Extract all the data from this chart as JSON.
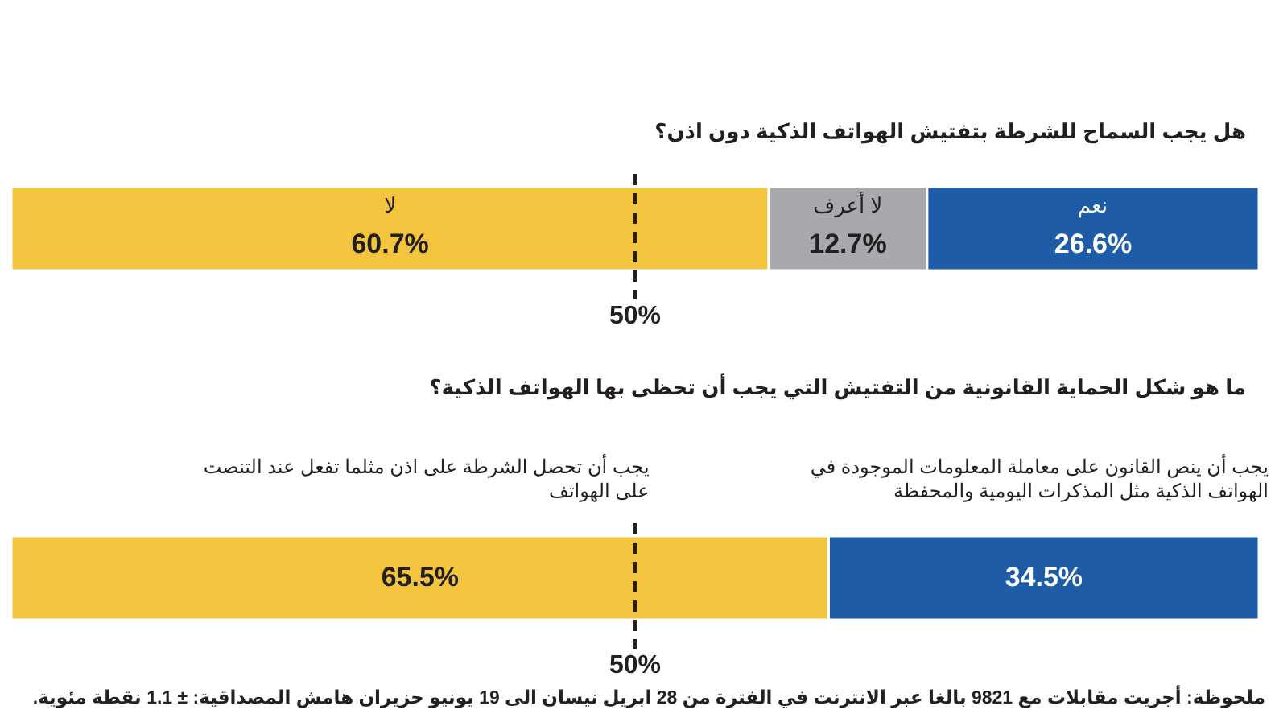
{
  "chart_data": [
    {
      "type": "bar",
      "orientation": "horizontal",
      "stacked": true,
      "title": "هل يجب السماح للشرطة بتفتيش الهواتف الذكية دون اذن؟",
      "categories": [
        null
      ],
      "xlim": [
        100,
        0
      ],
      "tick_labels": false,
      "series": [
        {
          "name": "نعم",
          "color": "#1e5ca8",
          "values": [
            26.6
          ],
          "value_labels": [
            "26.6%"
          ]
        },
        {
          "name": "لا أعرف",
          "color": "#a7a9ac",
          "values": [
            12.7
          ],
          "value_labels": [
            "12.7%"
          ]
        },
        {
          "name": "لا",
          "color": "#f3c53e",
          "values": [
            60.7
          ],
          "value_labels": [
            "60.7%"
          ]
        }
      ],
      "ref_lines": [
        {
          "axis": "x",
          "value": 50,
          "label": "50%",
          "line_style": "dashed",
          "color": "#231f20"
        }
      ]
    },
    {
      "type": "bar",
      "orientation": "horizontal",
      "stacked": true,
      "title": "ما هو شكل الحماية القانونية من التفتيش التي يجب أن تحظى بها الهواتف الذكية؟",
      "categories": [
        null
      ],
      "xlim": [
        100,
        0
      ],
      "tick_labels": false,
      "series": [
        {
          "name": "يجب أن ينص القانون على معاملة المعلومات الموجودة في الهواتف الذكية مثل المذكرات اليومية والمحفظة",
          "color": "#1e5ca8",
          "values": [
            34.5
          ],
          "value_labels": [
            "34.5%"
          ]
        },
        {
          "name": "يجب أن تحصل الشرطة على اذن مثلما تفعل عند التنصت على الهواتف",
          "color": "#f3c53e",
          "values": [
            65.5
          ],
          "value_labels": [
            "65.5%"
          ]
        }
      ],
      "ref_lines": [
        {
          "axis": "x",
          "value": 50,
          "label": "50%",
          "line_style": "dashed",
          "color": "#231f20"
        }
      ],
      "annotations": [
        "ملحوظة: أجريت مقابلات مع 9821 بالغا عبر الانترنت في الفترة من 28 ابريل نيسان الى 19 يونيو حزيران هامش المصداقية: ± 1.1 نقطة مئوية."
      ]
    }
  ]
}
